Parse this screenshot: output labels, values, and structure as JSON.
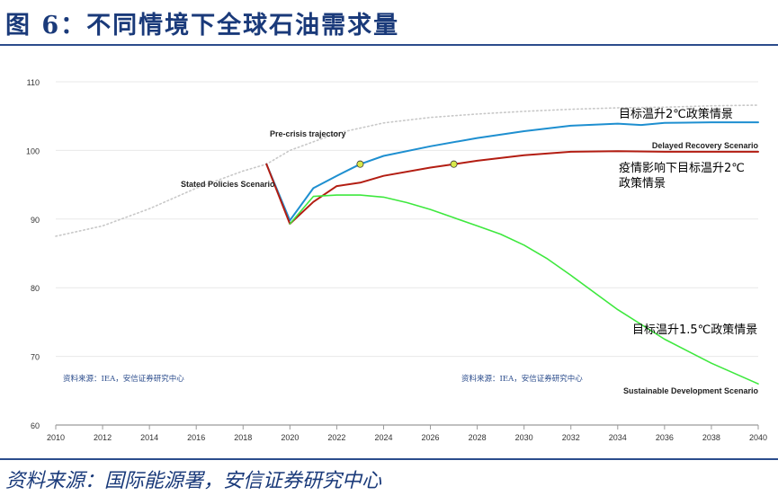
{
  "page": {
    "title": "图 6：不同情境下全球石油需求量",
    "source": "资料来源：国际能源署，安信证券研究中心"
  },
  "colors": {
    "title": "#1a3a7a",
    "rule": "#2b4c8c",
    "stated": "#1e8fd0",
    "delayed": "#b31d12",
    "sustainable": "#3ee83e",
    "precrisis": "#c8c8c8",
    "marker": "#d8e84a"
  },
  "chart_data": {
    "type": "line",
    "xlim": [
      2010,
      2040
    ],
    "ylim": [
      60,
      110
    ],
    "x_ticks": [
      "2010",
      "2012",
      "2014",
      "2016",
      "2018",
      "2020",
      "2022",
      "2024",
      "2026",
      "2028",
      "2030",
      "2032",
      "2034",
      "2036",
      "2038",
      "2040"
    ],
    "y_ticks": [
      "60",
      "70",
      "80",
      "90",
      "100",
      "110"
    ],
    "series": [
      {
        "name": "Pre-crisis trajectory",
        "style": "dotted",
        "x": [
          2010,
          2012,
          2014,
          2016,
          2018,
          2019,
          2020,
          2022,
          2024,
          2026,
          2028,
          2030,
          2032,
          2034,
          2036,
          2038,
          2040
        ],
        "y": [
          87.5,
          89.0,
          91.5,
          94.5,
          97.0,
          98.0,
          100.0,
          102.5,
          104.0,
          104.8,
          105.3,
          105.7,
          106.0,
          106.2,
          106.3,
          106.5,
          106.6
        ]
      },
      {
        "name": "Stated Policies Scenario",
        "label_cn": "目标温升2℃政策情景",
        "x": [
          2019,
          2020,
          2021,
          2022,
          2023,
          2024,
          2026,
          2028,
          2030,
          2032,
          2034,
          2035,
          2036,
          2038,
          2040
        ],
        "y": [
          98.0,
          89.8,
          94.5,
          96.3,
          98.0,
          99.2,
          100.6,
          101.8,
          102.8,
          103.6,
          103.9,
          103.7,
          104.0,
          104.1,
          104.1
        ]
      },
      {
        "name": "Delayed Recovery Scenario",
        "label_cn": "疫情影响下目标温升2℃政策情景",
        "x": [
          2019,
          2020,
          2021,
          2022,
          2023,
          2024,
          2026,
          2027,
          2028,
          2030,
          2032,
          2034,
          2036,
          2038,
          2040
        ],
        "y": [
          98.0,
          89.3,
          92.5,
          94.8,
          95.3,
          96.3,
          97.5,
          98.0,
          98.5,
          99.3,
          99.8,
          99.9,
          99.8,
          99.8,
          99.8
        ]
      },
      {
        "name": "Sustainable Development Scenario",
        "label_cn": "目标温升1.5℃政策情景",
        "x": [
          2020,
          2021,
          2022,
          2023,
          2024,
          2025,
          2026,
          2027,
          2028,
          2029,
          2030,
          2031,
          2032,
          2034,
          2036,
          2038,
          2040
        ],
        "y": [
          89.3,
          93.3,
          93.5,
          93.5,
          93.2,
          92.4,
          91.4,
          90.2,
          89.0,
          87.8,
          86.2,
          84.2,
          81.8,
          76.8,
          72.5,
          69.0,
          66.0
        ]
      }
    ],
    "markers": [
      {
        "series": "Stated Policies Scenario",
        "x": 2023,
        "y": 98.0
      },
      {
        "series": "Delayed Recovery Scenario",
        "x": 2027,
        "y": 98.0
      }
    ],
    "annotations": {
      "precrisis": "Pre-crisis trajectory",
      "stated": "Stated Policies Scenario",
      "delayed": "Delayed Recovery Scenario",
      "sustainable": "Sustainable Development Scenario",
      "stated_cn": "目标温升2℃政策情景",
      "delayed_cn_line1": "疫情影响下目标温升2℃",
      "delayed_cn_line2": "政策情景",
      "sustainable_cn": "目标温升1.5℃政策情景",
      "inner_source_left": "资料来源：IEA，安信证券研究中心",
      "inner_source_right": "资料来源：IEA，安信证券研究中心"
    }
  }
}
